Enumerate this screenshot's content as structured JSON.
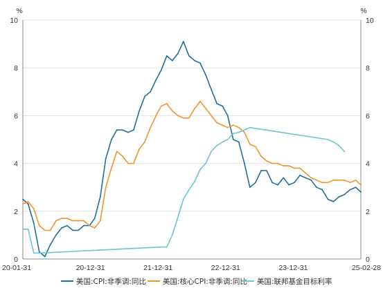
{
  "chart_data": {
    "type": "line",
    "title": "",
    "xlabel": "",
    "ylabel": "",
    "y_unit_left": "%",
    "y_unit_right": "%",
    "ylim": [
      0,
      10
    ],
    "y_ticks": [
      0,
      2,
      4,
      6,
      8,
      10
    ],
    "x_tick_labels": [
      "20-01-31",
      "20-12-31",
      "21-12-31",
      "22-12-31",
      "23-12-31",
      "25-02-28"
    ],
    "grid": "horizontal",
    "legend_position": "bottom",
    "series": [
      {
        "name": "美国:CPI:非季调:同比",
        "color": "#1f6f9c",
        "points": [
          [
            "2020-01-31",
            2.5
          ],
          [
            "2020-02-29",
            2.3
          ],
          [
            "2020-03-31",
            1.5
          ],
          [
            "2020-04-30",
            0.3
          ],
          [
            "2020-05-31",
            0.1
          ],
          [
            "2020-06-30",
            0.6
          ],
          [
            "2020-07-31",
            1.0
          ],
          [
            "2020-08-31",
            1.3
          ],
          [
            "2020-09-30",
            1.4
          ],
          [
            "2020-10-31",
            1.2
          ],
          [
            "2020-11-30",
            1.2
          ],
          [
            "2020-12-31",
            1.4
          ],
          [
            "2021-01-31",
            1.4
          ],
          [
            "2021-02-28",
            1.7
          ],
          [
            "2021-03-31",
            2.6
          ],
          [
            "2021-04-30",
            4.2
          ],
          [
            "2021-05-31",
            5.0
          ],
          [
            "2021-06-30",
            5.4
          ],
          [
            "2021-07-31",
            5.4
          ],
          [
            "2021-08-31",
            5.3
          ],
          [
            "2021-09-30",
            5.4
          ],
          [
            "2021-10-31",
            6.2
          ],
          [
            "2021-11-30",
            6.8
          ],
          [
            "2021-12-31",
            7.0
          ],
          [
            "2022-01-31",
            7.5
          ],
          [
            "2022-02-28",
            7.9
          ],
          [
            "2022-03-31",
            8.5
          ],
          [
            "2022-04-30",
            8.3
          ],
          [
            "2022-05-31",
            8.6
          ],
          [
            "2022-06-30",
            9.1
          ],
          [
            "2022-07-31",
            8.5
          ],
          [
            "2022-08-31",
            8.3
          ],
          [
            "2022-09-30",
            8.2
          ],
          [
            "2022-10-31",
            7.7
          ],
          [
            "2022-11-30",
            7.1
          ],
          [
            "2022-12-31",
            6.5
          ],
          [
            "2023-01-31",
            6.4
          ],
          [
            "2023-02-28",
            6.0
          ],
          [
            "2023-03-31",
            5.0
          ],
          [
            "2023-04-30",
            4.9
          ],
          [
            "2023-05-31",
            4.0
          ],
          [
            "2023-06-30",
            3.0
          ],
          [
            "2023-07-31",
            3.2
          ],
          [
            "2023-08-31",
            3.7
          ],
          [
            "2023-09-30",
            3.7
          ],
          [
            "2023-10-31",
            3.2
          ],
          [
            "2023-11-30",
            3.1
          ],
          [
            "2023-12-31",
            3.4
          ],
          [
            "2024-01-31",
            3.1
          ],
          [
            "2024-02-29",
            3.2
          ],
          [
            "2024-03-31",
            3.5
          ],
          [
            "2024-04-30",
            3.4
          ],
          [
            "2024-05-31",
            3.3
          ],
          [
            "2024-06-30",
            3.0
          ],
          [
            "2024-07-31",
            2.9
          ],
          [
            "2024-08-31",
            2.5
          ],
          [
            "2024-09-30",
            2.4
          ],
          [
            "2024-10-31",
            2.6
          ],
          [
            "2024-11-30",
            2.7
          ],
          [
            "2024-12-31",
            2.9
          ],
          [
            "2025-01-31",
            3.0
          ],
          [
            "2025-02-28",
            2.8
          ]
        ]
      },
      {
        "name": "美国:核心CPI:非季调:同比",
        "color": "#f0942c",
        "points": [
          [
            "2020-01-31",
            2.3
          ],
          [
            "2020-02-29",
            2.4
          ],
          [
            "2020-03-31",
            2.1
          ],
          [
            "2020-04-30",
            1.4
          ],
          [
            "2020-05-31",
            1.2
          ],
          [
            "2020-06-30",
            1.2
          ],
          [
            "2020-07-31",
            1.6
          ],
          [
            "2020-08-31",
            1.7
          ],
          [
            "2020-09-30",
            1.7
          ],
          [
            "2020-10-31",
            1.6
          ],
          [
            "2020-11-30",
            1.6
          ],
          [
            "2020-12-31",
            1.6
          ],
          [
            "2021-01-31",
            1.4
          ],
          [
            "2021-02-28",
            1.3
          ],
          [
            "2021-03-31",
            1.6
          ],
          [
            "2021-04-30",
            3.0
          ],
          [
            "2021-05-31",
            3.8
          ],
          [
            "2021-06-30",
            4.5
          ],
          [
            "2021-07-31",
            4.3
          ],
          [
            "2021-08-31",
            4.0
          ],
          [
            "2021-09-30",
            4.0
          ],
          [
            "2021-10-31",
            4.6
          ],
          [
            "2021-11-30",
            4.9
          ],
          [
            "2021-12-31",
            5.5
          ],
          [
            "2022-01-31",
            6.0
          ],
          [
            "2022-02-28",
            6.4
          ],
          [
            "2022-03-31",
            6.5
          ],
          [
            "2022-04-30",
            6.2
          ],
          [
            "2022-05-31",
            6.0
          ],
          [
            "2022-06-30",
            5.9
          ],
          [
            "2022-07-31",
            5.9
          ],
          [
            "2022-08-31",
            6.3
          ],
          [
            "2022-09-30",
            6.6
          ],
          [
            "2022-10-31",
            6.3
          ],
          [
            "2022-11-30",
            6.0
          ],
          [
            "2022-12-31",
            5.7
          ],
          [
            "2023-01-31",
            5.6
          ],
          [
            "2023-02-28",
            5.5
          ],
          [
            "2023-03-31",
            5.6
          ],
          [
            "2023-04-30",
            5.5
          ],
          [
            "2023-05-31",
            5.3
          ],
          [
            "2023-06-30",
            4.8
          ],
          [
            "2023-07-31",
            4.7
          ],
          [
            "2023-08-31",
            4.3
          ],
          [
            "2023-09-30",
            4.1
          ],
          [
            "2023-10-31",
            4.0
          ],
          [
            "2023-11-30",
            4.0
          ],
          [
            "2023-12-31",
            3.9
          ],
          [
            "2024-01-31",
            3.9
          ],
          [
            "2024-02-29",
            3.8
          ],
          [
            "2024-03-31",
            3.8
          ],
          [
            "2024-04-30",
            3.6
          ],
          [
            "2024-05-31",
            3.4
          ],
          [
            "2024-06-30",
            3.3
          ],
          [
            "2024-07-31",
            3.2
          ],
          [
            "2024-08-31",
            3.2
          ],
          [
            "2024-09-30",
            3.3
          ],
          [
            "2024-10-31",
            3.3
          ],
          [
            "2024-11-30",
            3.3
          ],
          [
            "2024-12-31",
            3.2
          ],
          [
            "2025-01-31",
            3.3
          ],
          [
            "2025-02-28",
            3.1
          ]
        ]
      },
      {
        "name": "美国:联邦基金目标利率",
        "color": "#6cc5cc",
        "points": [
          [
            "2020-01-31",
            1.25
          ],
          [
            "2020-02-29",
            1.25
          ],
          [
            "2020-03-31",
            0.25
          ],
          [
            "2020-04-30",
            0.25
          ],
          [
            "2022-02-28",
            0.5
          ],
          [
            "2022-03-31",
            0.5
          ],
          [
            "2022-04-30",
            1.0
          ],
          [
            "2022-05-31",
            1.75
          ],
          [
            "2022-06-30",
            2.5
          ],
          [
            "2022-07-31",
            2.9
          ],
          [
            "2022-08-31",
            3.25
          ],
          [
            "2022-09-30",
            3.75
          ],
          [
            "2022-10-31",
            4.0
          ],
          [
            "2022-11-30",
            4.5
          ],
          [
            "2022-12-31",
            4.75
          ],
          [
            "2023-01-31",
            4.9
          ],
          [
            "2023-02-28",
            5.0
          ],
          [
            "2023-03-31",
            5.25
          ],
          [
            "2023-04-30",
            5.3
          ],
          [
            "2023-05-31",
            5.4
          ],
          [
            "2023-06-30",
            5.5
          ],
          [
            "2024-08-31",
            5.0
          ],
          [
            "2024-09-30",
            4.9
          ],
          [
            "2024-10-31",
            4.75
          ],
          [
            "2024-11-30",
            4.5
          ]
        ]
      }
    ]
  }
}
